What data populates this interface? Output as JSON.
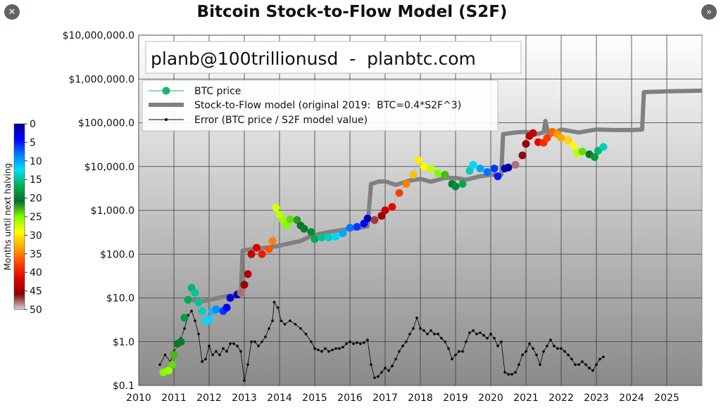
{
  "ui": {
    "close_glyph": "✕",
    "next_glyph": "»",
    "close_icon": "close-icon",
    "next_icon": "chevron-double-right-icon"
  },
  "chart_data": {
    "type": "scatter",
    "title": "Bitcoin Stock-to-Flow Model (S2F)",
    "watermark": "planb@100trillionusd  -  planbtc.com",
    "xlabel": "",
    "ylabel": "",
    "x_ticks": [
      "2010",
      "2011",
      "2012",
      "2013",
      "2014",
      "2015",
      "2016",
      "2017",
      "2018",
      "2019",
      "2020",
      "2021",
      "2022",
      "2023",
      "2024",
      "2025"
    ],
    "xlim": [
      2010,
      2026
    ],
    "y_scale": "log",
    "ylim": [
      0.1,
      10000000
    ],
    "y_ticks": [
      {
        "value": 10000000,
        "label": "$10,000,000.0"
      },
      {
        "value": 1000000,
        "label": "$1,000,000.0"
      },
      {
        "value": 100000,
        "label": "$100,000.0"
      },
      {
        "value": 10000,
        "label": "$10,000.0"
      },
      {
        "value": 1000,
        "label": "$1,000.0"
      },
      {
        "value": 100,
        "label": "$100.0"
      },
      {
        "value": 10,
        "label": "$10.0"
      },
      {
        "value": 1,
        "label": "$1.0"
      },
      {
        "value": 0.1,
        "label": "$0.1"
      }
    ],
    "grid": true,
    "legend_position": "upper-left",
    "legend": [
      {
        "label": "BTC price",
        "marker": "dot",
        "color": "#1cb46b"
      },
      {
        "label": "Stock-to-Flow model (original 2019:  BTC=0.4*S2F^3)",
        "marker": "line",
        "color": "#808080"
      },
      {
        "label": "Error (BTC price / S2F model value)",
        "marker": "small-dot",
        "color": "#000000"
      }
    ],
    "colorbar": {
      "label": "Months until next halving",
      "ticks": [
        0,
        5,
        10,
        15,
        20,
        25,
        30,
        35,
        40,
        45,
        50
      ],
      "colors": [
        "#00008c",
        "#0000ff",
        "#0080ff",
        "#00e0ff",
        "#00b050",
        "#0a6e2a",
        "#80ff00",
        "#ffff00",
        "#ffa500",
        "#ff4500",
        "#e00000",
        "#8b0000",
        "#d8d8d8"
      ]
    },
    "series": [
      {
        "name": "Stock-to-Flow model (original 2019:  BTC=0.4*S2F^3)",
        "color": "#808080",
        "points": [
          [
            2011.4,
            10
          ],
          [
            2011.7,
            8
          ],
          [
            2012.0,
            9
          ],
          [
            2012.5,
            11
          ],
          [
            2012.9,
            12
          ],
          [
            2012.95,
            120
          ],
          [
            2013.2,
            130
          ],
          [
            2013.6,
            140
          ],
          [
            2013.9,
            150
          ],
          [
            2014.2,
            170
          ],
          [
            2014.6,
            200
          ],
          [
            2014.9,
            260
          ],
          [
            2015.3,
            310
          ],
          [
            2015.7,
            350
          ],
          [
            2016.0,
            380
          ],
          [
            2016.3,
            400
          ],
          [
            2016.5,
            430
          ],
          [
            2016.6,
            4000
          ],
          [
            2016.8,
            4500
          ],
          [
            2017.0,
            4600
          ],
          [
            2017.3,
            3800
          ],
          [
            2017.7,
            4800
          ],
          [
            2018.0,
            5200
          ],
          [
            2018.3,
            4500
          ],
          [
            2018.7,
            5500
          ],
          [
            2019.0,
            5500
          ],
          [
            2019.3,
            5000
          ],
          [
            2019.7,
            6000
          ],
          [
            2020.0,
            6500
          ],
          [
            2020.3,
            6500
          ],
          [
            2020.35,
            55000
          ],
          [
            2020.7,
            60000
          ],
          [
            2021.0,
            62000
          ],
          [
            2021.3,
            55000
          ],
          [
            2021.5,
            60000
          ],
          [
            2021.55,
            110000
          ],
          [
            2021.65,
            50000
          ],
          [
            2022.0,
            70000
          ],
          [
            2022.5,
            60000
          ],
          [
            2023.0,
            70000
          ],
          [
            2023.5,
            68000
          ],
          [
            2024.0,
            68000
          ],
          [
            2024.3,
            70000
          ],
          [
            2024.35,
            500000
          ],
          [
            2025.0,
            520000
          ],
          [
            2026.0,
            540000
          ]
        ]
      },
      {
        "name": "BTC price",
        "points": [
          [
            2010.7,
            0.2,
            25
          ],
          [
            2010.85,
            0.22,
            26
          ],
          [
            2010.95,
            0.3,
            24
          ],
          [
            2011.0,
            0.5,
            23
          ],
          [
            2011.1,
            0.9,
            21
          ],
          [
            2011.2,
            1.0,
            20
          ],
          [
            2011.3,
            3.5,
            18
          ],
          [
            2011.4,
            9,
            17
          ],
          [
            2011.5,
            17,
            16
          ],
          [
            2011.6,
            13,
            15
          ],
          [
            2011.7,
            8,
            15
          ],
          [
            2011.8,
            5,
            14
          ],
          [
            2011.9,
            3,
            13
          ],
          [
            2012.0,
            3.2,
            12
          ],
          [
            2012.1,
            5,
            11
          ],
          [
            2012.2,
            5.5,
            9
          ],
          [
            2012.4,
            5,
            6
          ],
          [
            2012.5,
            6,
            4
          ],
          [
            2012.6,
            10,
            3
          ],
          [
            2012.8,
            12,
            1
          ],
          [
            2012.9,
            13,
            48
          ],
          [
            2013.0,
            20,
            45
          ],
          [
            2013.1,
            35,
            44
          ],
          [
            2013.2,
            100,
            43
          ],
          [
            2013.35,
            140,
            42
          ],
          [
            2013.5,
            100,
            40
          ],
          [
            2013.7,
            130,
            37
          ],
          [
            2013.8,
            200,
            35
          ],
          [
            2013.9,
            1150,
            28
          ],
          [
            2014.0,
            800,
            27
          ],
          [
            2014.1,
            600,
            26
          ],
          [
            2014.2,
            450,
            25
          ],
          [
            2014.3,
            620,
            24
          ],
          [
            2014.5,
            600,
            22
          ],
          [
            2014.6,
            450,
            21
          ],
          [
            2014.7,
            380,
            20
          ],
          [
            2014.9,
            320,
            19
          ],
          [
            2015.0,
            220,
            17
          ],
          [
            2015.2,
            240,
            15
          ],
          [
            2015.4,
            240,
            14
          ],
          [
            2015.6,
            250,
            12
          ],
          [
            2015.8,
            300,
            10
          ],
          [
            2016.0,
            400,
            8
          ],
          [
            2016.2,
            420,
            6
          ],
          [
            2016.4,
            500,
            4
          ],
          [
            2016.5,
            650,
            2
          ],
          [
            2016.7,
            600,
            47
          ],
          [
            2016.9,
            750,
            45
          ],
          [
            2017.0,
            1000,
            43
          ],
          [
            2017.2,
            1200,
            41
          ],
          [
            2017.4,
            2500,
            38
          ],
          [
            2017.6,
            4000,
            35
          ],
          [
            2017.8,
            6500,
            32
          ],
          [
            2017.95,
            14000,
            30
          ],
          [
            2018.1,
            10000,
            29
          ],
          [
            2018.3,
            9000,
            27
          ],
          [
            2018.5,
            7000,
            25
          ],
          [
            2018.7,
            6500,
            23
          ],
          [
            2018.9,
            4000,
            20
          ],
          [
            2019.0,
            3500,
            19
          ],
          [
            2019.2,
            4000,
            17
          ],
          [
            2019.4,
            8000,
            14
          ],
          [
            2019.5,
            11000,
            12
          ],
          [
            2019.7,
            9000,
            10
          ],
          [
            2019.9,
            7500,
            8
          ],
          [
            2020.1,
            9000,
            6
          ],
          [
            2020.2,
            6000,
            5
          ],
          [
            2020.4,
            9000,
            2
          ],
          [
            2020.5,
            9500,
            1
          ],
          [
            2020.7,
            11000,
            48
          ],
          [
            2020.9,
            18000,
            46
          ],
          [
            2021.0,
            33000,
            45
          ],
          [
            2021.1,
            50000,
            44
          ],
          [
            2021.2,
            58000,
            43
          ],
          [
            2021.35,
            36000,
            41
          ],
          [
            2021.5,
            35000,
            39
          ],
          [
            2021.6,
            45000,
            38
          ],
          [
            2021.75,
            62000,
            36
          ],
          [
            2021.9,
            55000,
            34
          ],
          [
            2022.0,
            45000,
            33
          ],
          [
            2022.2,
            40000,
            31
          ],
          [
            2022.35,
            30000,
            29
          ],
          [
            2022.45,
            20000,
            27
          ],
          [
            2022.6,
            22000,
            24
          ],
          [
            2022.8,
            19000,
            21
          ],
          [
            2022.95,
            16500,
            18
          ],
          [
            2023.05,
            23000,
            16
          ],
          [
            2023.2,
            28000,
            14
          ]
        ]
      },
      {
        "name": "Error (BTC price / S2F model value)",
        "color": "#000000",
        "points": [
          [
            2010.6,
            0.3
          ],
          [
            2010.75,
            0.5
          ],
          [
            2010.9,
            0.35
          ],
          [
            2011.0,
            0.6
          ],
          [
            2011.1,
            0.8
          ],
          [
            2011.2,
            1.2
          ],
          [
            2011.3,
            2.0
          ],
          [
            2011.4,
            4.0
          ],
          [
            2011.5,
            5.0
          ],
          [
            2011.6,
            3.0
          ],
          [
            2011.7,
            1.5
          ],
          [
            2011.8,
            0.35
          ],
          [
            2011.9,
            0.4
          ],
          [
            2012.0,
            0.8
          ],
          [
            2012.1,
            0.5
          ],
          [
            2012.2,
            0.6
          ],
          [
            2012.3,
            0.5
          ],
          [
            2012.4,
            0.7
          ],
          [
            2012.5,
            0.6
          ],
          [
            2012.6,
            0.9
          ],
          [
            2012.7,
            0.9
          ],
          [
            2012.8,
            0.8
          ],
          [
            2012.9,
            0.6
          ],
          [
            2013.0,
            0.13
          ],
          [
            2013.1,
            0.3
          ],
          [
            2013.2,
            1.0
          ],
          [
            2013.3,
            1.0
          ],
          [
            2013.4,
            0.8
          ],
          [
            2013.5,
            1.0
          ],
          [
            2013.6,
            1.3
          ],
          [
            2013.7,
            2.0
          ],
          [
            2013.8,
            3.0
          ],
          [
            2013.85,
            8.0
          ],
          [
            2013.95,
            6.0
          ],
          [
            2014.05,
            3.0
          ],
          [
            2014.15,
            2.5
          ],
          [
            2014.3,
            3.0
          ],
          [
            2014.45,
            2.5
          ],
          [
            2014.6,
            2.0
          ],
          [
            2014.75,
            1.5
          ],
          [
            2014.9,
            1.0
          ],
          [
            2015.0,
            0.7
          ],
          [
            2015.1,
            0.65
          ],
          [
            2015.2,
            0.6
          ],
          [
            2015.3,
            0.7
          ],
          [
            2015.4,
            0.6
          ],
          [
            2015.5,
            0.65
          ],
          [
            2015.6,
            0.7
          ],
          [
            2015.7,
            0.7
          ],
          [
            2015.8,
            0.75
          ],
          [
            2015.9,
            0.9
          ],
          [
            2016.0,
            1.0
          ],
          [
            2016.1,
            0.9
          ],
          [
            2016.2,
            0.95
          ],
          [
            2016.3,
            0.9
          ],
          [
            2016.4,
            0.95
          ],
          [
            2016.5,
            1.1
          ],
          [
            2016.6,
            0.3
          ],
          [
            2016.7,
            0.15
          ],
          [
            2016.8,
            0.16
          ],
          [
            2016.9,
            0.2
          ],
          [
            2017.0,
            0.25
          ],
          [
            2017.1,
            0.22
          ],
          [
            2017.2,
            0.28
          ],
          [
            2017.3,
            0.4
          ],
          [
            2017.4,
            0.6
          ],
          [
            2017.5,
            0.8
          ],
          [
            2017.6,
            1.0
          ],
          [
            2017.7,
            1.5
          ],
          [
            2017.8,
            2.0
          ],
          [
            2017.9,
            3.5
          ],
          [
            2018.0,
            2.0
          ],
          [
            2018.1,
            1.8
          ],
          [
            2018.2,
            1.5
          ],
          [
            2018.3,
            1.8
          ],
          [
            2018.4,
            1.5
          ],
          [
            2018.5,
            1.5
          ],
          [
            2018.6,
            1.2
          ],
          [
            2018.7,
            1.0
          ],
          [
            2018.8,
            0.7
          ],
          [
            2018.9,
            0.4
          ],
          [
            2019.0,
            0.5
          ],
          [
            2019.1,
            0.6
          ],
          [
            2019.2,
            0.6
          ],
          [
            2019.3,
            1.0
          ],
          [
            2019.4,
            1.6
          ],
          [
            2019.5,
            1.8
          ],
          [
            2019.6,
            1.5
          ],
          [
            2019.7,
            1.6
          ],
          [
            2019.8,
            1.4
          ],
          [
            2019.9,
            1.2
          ],
          [
            2020.0,
            1.5
          ],
          [
            2020.1,
            1.2
          ],
          [
            2020.2,
            0.8
          ],
          [
            2020.3,
            1.0
          ],
          [
            2020.4,
            0.2
          ],
          [
            2020.5,
            0.18
          ],
          [
            2020.6,
            0.18
          ],
          [
            2020.7,
            0.2
          ],
          [
            2020.8,
            0.3
          ],
          [
            2020.9,
            0.5
          ],
          [
            2021.0,
            0.6
          ],
          [
            2021.1,
            0.9
          ],
          [
            2021.2,
            0.7
          ],
          [
            2021.3,
            0.5
          ],
          [
            2021.4,
            0.3
          ],
          [
            2021.5,
            0.6
          ],
          [
            2021.6,
            0.8
          ],
          [
            2021.7,
            1.1
          ],
          [
            2021.8,
            0.8
          ],
          [
            2021.9,
            0.7
          ],
          [
            2022.0,
            0.7
          ],
          [
            2022.1,
            0.6
          ],
          [
            2022.2,
            0.5
          ],
          [
            2022.3,
            0.4
          ],
          [
            2022.4,
            0.3
          ],
          [
            2022.5,
            0.3
          ],
          [
            2022.6,
            0.35
          ],
          [
            2022.7,
            0.3
          ],
          [
            2022.8,
            0.25
          ],
          [
            2022.9,
            0.22
          ],
          [
            2023.0,
            0.3
          ],
          [
            2023.1,
            0.4
          ],
          [
            2023.2,
            0.45
          ]
        ]
      }
    ]
  }
}
